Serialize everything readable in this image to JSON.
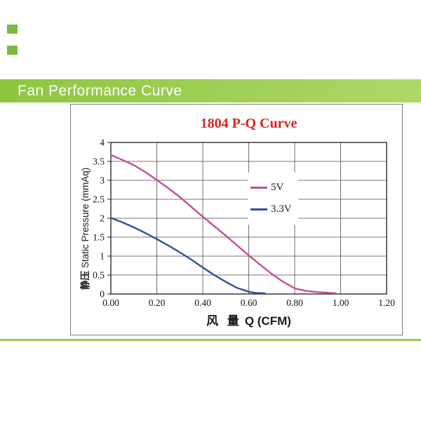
{
  "page": {
    "banner": {
      "title": "Fan Performance Curve",
      "bg_left": "#8DC63F",
      "bg_right": "#AFD768",
      "text_color": "#FFFFFF"
    },
    "decor": {
      "square_color": "#7CBB40",
      "bottom_line_color": "#9CC84F"
    }
  },
  "chart_data": {
    "type": "line",
    "title": "1804 P-Q Curve",
    "title_color": "#D8261B",
    "xlabel_cn": "风 量",
    "xlabel_en": "Q (CFM)",
    "ylabel_cn": "静压",
    "ylabel_en": "Static Pressure (mmAq)",
    "xlim": [
      0,
      1.2
    ],
    "ylim": [
      0,
      4
    ],
    "x_ticks": [
      0,
      0.2,
      0.4,
      0.6,
      0.8,
      1.0,
      1.2
    ],
    "x_tick_labels": [
      "0.00",
      "0.20",
      "0.40",
      "0.60",
      "0.80",
      "1.00",
      "1.20"
    ],
    "y_ticks": [
      0,
      0.5,
      1,
      1.5,
      2,
      2.5,
      3,
      3.5,
      4
    ],
    "y_tick_labels": [
      "0",
      "0.5",
      "1",
      "1.5",
      "2",
      "2.5",
      "3",
      "3.5",
      "4"
    ],
    "grid": true,
    "grid_color": "#4B4B4B",
    "frame_color": "#1B1B1B",
    "legend": {
      "position": "inside-center-right",
      "entries": [
        "5V",
        "3.3V"
      ]
    },
    "series": [
      {
        "name": "5V",
        "color": "#BF4F9C",
        "points": [
          [
            0,
            3.67
          ],
          [
            0.05,
            3.54
          ],
          [
            0.1,
            3.4
          ],
          [
            0.15,
            3.22
          ],
          [
            0.2,
            3.01
          ],
          [
            0.25,
            2.79
          ],
          [
            0.3,
            2.56
          ],
          [
            0.35,
            2.3
          ],
          [
            0.4,
            2.04
          ],
          [
            0.45,
            1.79
          ],
          [
            0.5,
            1.54
          ],
          [
            0.55,
            1.28
          ],
          [
            0.6,
            1.02
          ],
          [
            0.65,
            0.77
          ],
          [
            0.7,
            0.53
          ],
          [
            0.75,
            0.32
          ],
          [
            0.8,
            0.15
          ],
          [
            0.85,
            0.08
          ],
          [
            0.9,
            0.05
          ],
          [
            0.95,
            0.03
          ],
          [
            0.98,
            0.02
          ]
        ]
      },
      {
        "name": "3.3V",
        "color": "#30509C",
        "points": [
          [
            0,
            2.01
          ],
          [
            0.05,
            1.89
          ],
          [
            0.1,
            1.76
          ],
          [
            0.15,
            1.61
          ],
          [
            0.2,
            1.45
          ],
          [
            0.25,
            1.28
          ],
          [
            0.3,
            1.1
          ],
          [
            0.35,
            0.91
          ],
          [
            0.4,
            0.7
          ],
          [
            0.45,
            0.5
          ],
          [
            0.5,
            0.32
          ],
          [
            0.55,
            0.16
          ],
          [
            0.6,
            0.06
          ],
          [
            0.63,
            0.03
          ],
          [
            0.67,
            0.02
          ]
        ]
      }
    ]
  }
}
